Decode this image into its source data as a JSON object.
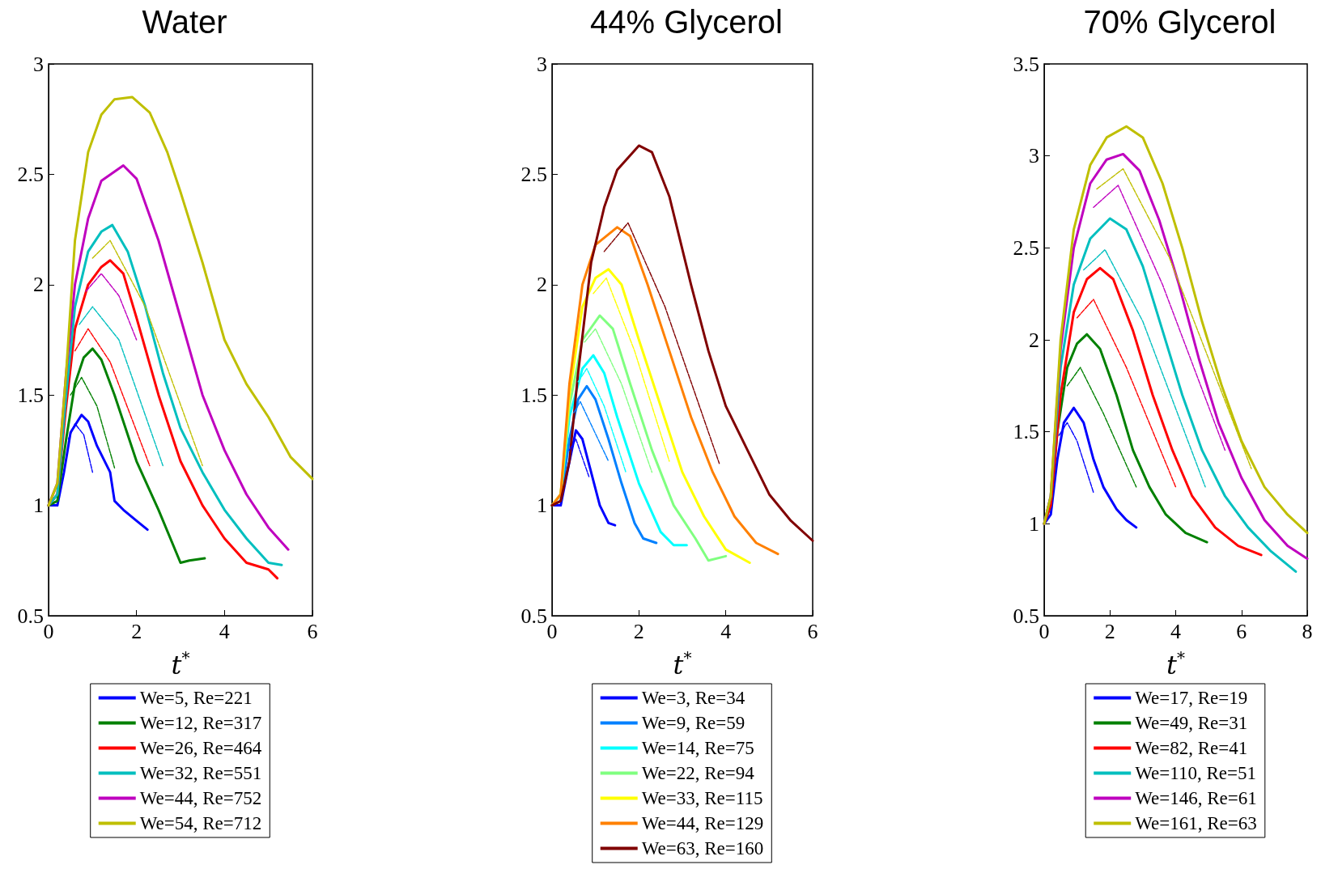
{
  "chart_data": [
    {
      "type": "line",
      "title": "Water",
      "xlabel": "t$^{*}$",
      "xlim": [
        0,
        6
      ],
      "xticks": [
        0,
        2,
        4,
        6
      ],
      "ylim": [
        0.5,
        3
      ],
      "yticks": [
        0.5,
        1,
        1.5,
        2,
        2.5,
        3
      ],
      "grid": false,
      "legend": "bottom",
      "marker": "none",
      "series": [
        {
          "name": "We=5, Re=221",
          "color": "#0000ff",
          "x": [
            0,
            0.2,
            0.35,
            0.5,
            0.75,
            0.9,
            1.1,
            1.4,
            1.5,
            1.7,
            2.0,
            2.25
          ],
          "values": [
            1,
            1.0,
            1.15,
            1.33,
            1.41,
            1.38,
            1.27,
            1.15,
            1.02,
            0.98,
            0.93,
            0.89
          ]
        },
        {
          "name": "We=12, Re=317",
          "color": "#008000",
          "x": [
            0,
            0.2,
            0.4,
            0.6,
            0.8,
            1.0,
            1.2,
            1.5,
            2.0,
            2.5,
            3.0,
            3.2,
            3.55
          ],
          "values": [
            1,
            1.02,
            1.3,
            1.55,
            1.67,
            1.71,
            1.66,
            1.5,
            1.2,
            0.98,
            0.74,
            0.75,
            0.76
          ]
        },
        {
          "name": "We=26, Re=464",
          "color": "#ff0000",
          "x": [
            0,
            0.2,
            0.4,
            0.6,
            0.9,
            1.2,
            1.4,
            1.7,
            2.0,
            2.5,
            3.0,
            3.5,
            4.0,
            4.5,
            5.0,
            5.2
          ],
          "values": [
            1,
            1.05,
            1.45,
            1.8,
            2.0,
            2.08,
            2.11,
            2.05,
            1.85,
            1.5,
            1.2,
            1.0,
            0.85,
            0.74,
            0.71,
            0.67
          ]
        },
        {
          "name": "We=32, Re=551",
          "color": "#00bfbf",
          "x": [
            0,
            0.2,
            0.4,
            0.6,
            0.9,
            1.2,
            1.45,
            1.8,
            2.2,
            2.6,
            3.0,
            3.5,
            4.0,
            4.5,
            5.0,
            5.3
          ],
          "values": [
            1,
            1.05,
            1.5,
            1.9,
            2.15,
            2.24,
            2.27,
            2.15,
            1.9,
            1.6,
            1.35,
            1.15,
            0.98,
            0.85,
            0.74,
            0.73
          ]
        },
        {
          "name": "We=44, Re=752",
          "color": "#bf00bf",
          "x": [
            0,
            0.2,
            0.4,
            0.6,
            0.9,
            1.2,
            1.7,
            2.0,
            2.5,
            3.0,
            3.5,
            4.0,
            4.5,
            5.0,
            5.45
          ],
          "values": [
            1,
            1.1,
            1.6,
            2.0,
            2.3,
            2.47,
            2.54,
            2.48,
            2.2,
            1.85,
            1.5,
            1.25,
            1.05,
            0.9,
            0.8
          ]
        },
        {
          "name": "We=54, Re=712",
          "color": "#bfbf00",
          "x": [
            0,
            0.2,
            0.4,
            0.6,
            0.9,
            1.2,
            1.5,
            1.9,
            2.3,
            2.7,
            3.0,
            3.5,
            4.0,
            4.5,
            5.0,
            5.5,
            6.0
          ],
          "values": [
            1,
            1.1,
            1.6,
            2.2,
            2.6,
            2.77,
            2.84,
            2.85,
            2.78,
            2.6,
            2.42,
            2.1,
            1.75,
            1.55,
            1.4,
            1.22,
            1.12
          ]
        },
        {
          "color": "#0000ff",
          "line_style": "dashed",
          "x": [
            0.45,
            0.6,
            0.8,
            1.0
          ],
          "values": [
            1.3,
            1.37,
            1.32,
            1.15
          ]
        },
        {
          "color": "#008000",
          "line_style": "dashed",
          "x": [
            0.5,
            0.75,
            1.1,
            1.5
          ],
          "values": [
            1.5,
            1.58,
            1.45,
            1.17
          ]
        },
        {
          "color": "#ff0000",
          "line_style": "dashed",
          "x": [
            0.6,
            0.9,
            1.4,
            2.3
          ],
          "values": [
            1.7,
            1.8,
            1.65,
            1.18
          ]
        },
        {
          "color": "#00bfbf",
          "line_style": "dashed",
          "x": [
            0.7,
            1.0,
            1.6,
            2.6
          ],
          "values": [
            1.82,
            1.9,
            1.75,
            1.18
          ]
        },
        {
          "color": "#bf00bf",
          "line_style": "dashed",
          "x": [
            0.85,
            1.2,
            1.6,
            2.0
          ],
          "values": [
            1.97,
            2.05,
            1.95,
            1.75
          ]
        },
        {
          "color": "#bfbf00",
          "line_style": "dashed",
          "x": [
            1.0,
            1.4,
            2.2,
            3.5
          ],
          "values": [
            2.12,
            2.2,
            1.9,
            1.18
          ]
        }
      ]
    },
    {
      "type": "line",
      "title": "44% Glycerol",
      "xlabel": "t$^{*}$",
      "xlim": [
        0,
        6
      ],
      "xticks": [
        0,
        2,
        4,
        6
      ],
      "ylim": [
        0.5,
        3
      ],
      "yticks": [
        0.5,
        1,
        1.5,
        2,
        2.5,
        3
      ],
      "grid": false,
      "legend": "bottom",
      "marker": "none",
      "series": [
        {
          "name": "We=3, Re=34",
          "color": "#0000ff",
          "x": [
            0,
            0.2,
            0.35,
            0.55,
            0.7,
            0.9,
            1.1,
            1.3,
            1.45
          ],
          "values": [
            1,
            1.0,
            1.15,
            1.34,
            1.3,
            1.15,
            1.0,
            0.92,
            0.91
          ]
        },
        {
          "name": "We=9, Re=59",
          "color": "#0080ff",
          "x": [
            0,
            0.2,
            0.4,
            0.6,
            0.8,
            1.0,
            1.3,
            1.6,
            1.9,
            2.1,
            2.4
          ],
          "values": [
            1,
            1.02,
            1.3,
            1.48,
            1.54,
            1.48,
            1.3,
            1.1,
            0.92,
            0.85,
            0.83
          ]
        },
        {
          "name": "We=14, Re=75",
          "color": "#00ffff",
          "x": [
            0,
            0.2,
            0.4,
            0.7,
            0.95,
            1.2,
            1.5,
            2.0,
            2.5,
            2.8,
            3.1
          ],
          "values": [
            1,
            1.05,
            1.4,
            1.62,
            1.68,
            1.6,
            1.4,
            1.1,
            0.88,
            0.82,
            0.82
          ]
        },
        {
          "name": "We=22, Re=94",
          "color": "#80ff80",
          "x": [
            0,
            0.2,
            0.4,
            0.7,
            1.1,
            1.4,
            1.8,
            2.3,
            2.8,
            3.3,
            3.6,
            4.0
          ],
          "values": [
            1,
            1.05,
            1.45,
            1.75,
            1.86,
            1.8,
            1.55,
            1.25,
            1.0,
            0.85,
            0.75,
            0.77
          ]
        },
        {
          "name": "We=33, Re=115",
          "color": "#ffff00",
          "x": [
            0,
            0.2,
            0.4,
            0.7,
            1.0,
            1.3,
            1.6,
            2.0,
            2.5,
            3.0,
            3.5,
            4.0,
            4.55
          ],
          "values": [
            1,
            1.05,
            1.5,
            1.9,
            2.03,
            2.07,
            2.0,
            1.75,
            1.45,
            1.15,
            0.95,
            0.8,
            0.74
          ]
        },
        {
          "name": "We=44, Re=129",
          "color": "#ff8000",
          "x": [
            0,
            0.2,
            0.4,
            0.7,
            1.0,
            1.5,
            1.8,
            2.2,
            2.7,
            3.2,
            3.7,
            4.2,
            4.7,
            5.2
          ],
          "values": [
            1,
            1.05,
            1.55,
            2.0,
            2.18,
            2.26,
            2.22,
            2.0,
            1.7,
            1.4,
            1.15,
            0.95,
            0.83,
            0.78
          ]
        },
        {
          "name": "We=63, Re=160",
          "color": "#800000",
          "x": [
            0,
            0.2,
            0.4,
            0.6,
            0.9,
            1.2,
            1.5,
            2.0,
            2.3,
            2.7,
            3.2,
            3.6,
            4.0,
            4.5,
            5.0,
            5.5,
            6.0
          ],
          "values": [
            1,
            1.02,
            1.2,
            1.6,
            2.1,
            2.35,
            2.52,
            2.63,
            2.6,
            2.4,
            2.0,
            1.7,
            1.45,
            1.25,
            1.05,
            0.93,
            0.84
          ]
        },
        {
          "color": "#0000ff",
          "line_style": "dashed",
          "x": [
            0.4,
            0.55,
            0.85
          ],
          "values": [
            1.25,
            1.3,
            1.13
          ]
        },
        {
          "color": "#0080ff",
          "line_style": "dashed",
          "x": [
            0.5,
            0.65,
            1.3
          ],
          "values": [
            1.42,
            1.47,
            1.2
          ]
        },
        {
          "color": "#00ffff",
          "line_style": "dashed",
          "x": [
            0.6,
            0.8,
            1.2,
            1.7
          ],
          "values": [
            1.56,
            1.62,
            1.45,
            1.15
          ]
        },
        {
          "color": "#80ff80",
          "line_style": "dashed",
          "x": [
            0.75,
            1.0,
            1.6,
            2.3
          ],
          "values": [
            1.74,
            1.8,
            1.55,
            1.15
          ]
        },
        {
          "color": "#ffff00",
          "line_style": "dashed",
          "x": [
            0.95,
            1.25,
            1.9,
            2.7
          ],
          "values": [
            1.96,
            2.03,
            1.7,
            1.2
          ]
        },
        {
          "color": "#800000",
          "line_style": "dashed",
          "x": [
            1.2,
            1.75,
            2.6,
            3.85
          ],
          "values": [
            2.15,
            2.28,
            1.9,
            1.19
          ]
        }
      ]
    },
    {
      "type": "line",
      "title": "70% Glycerol",
      "xlabel": "t$^{*}$",
      "xlim": [
        0,
        8
      ],
      "xticks": [
        0,
        2,
        4,
        6,
        8
      ],
      "ylim": [
        0.5,
        3.5
      ],
      "yticks": [
        0.5,
        1,
        1.5,
        2,
        2.5,
        3,
        3.5
      ],
      "grid": false,
      "legend": "bottom",
      "marker": "none",
      "series": [
        {
          "name": "We=17, Re=19",
          "color": "#0000ff",
          "x": [
            0,
            0.2,
            0.4,
            0.6,
            0.9,
            1.2,
            1.5,
            1.8,
            2.2,
            2.5,
            2.8
          ],
          "values": [
            1,
            1.05,
            1.35,
            1.55,
            1.63,
            1.55,
            1.35,
            1.2,
            1.08,
            1.02,
            0.98
          ]
        },
        {
          "name": "We=49, Re=31",
          "color": "#008000",
          "x": [
            0,
            0.2,
            0.4,
            0.7,
            1.0,
            1.3,
            1.7,
            2.2,
            2.7,
            3.2,
            3.7,
            4.3,
            4.95
          ],
          "values": [
            1,
            1.1,
            1.5,
            1.85,
            1.98,
            2.03,
            1.95,
            1.7,
            1.4,
            1.2,
            1.05,
            0.95,
            0.9
          ]
        },
        {
          "name": "We=82, Re=41",
          "color": "#ff0000",
          "x": [
            0,
            0.2,
            0.5,
            0.9,
            1.3,
            1.7,
            2.1,
            2.7,
            3.3,
            3.9,
            4.5,
            5.2,
            5.9,
            6.6
          ],
          "values": [
            1,
            1.1,
            1.7,
            2.15,
            2.33,
            2.39,
            2.33,
            2.05,
            1.7,
            1.4,
            1.15,
            0.98,
            0.88,
            0.83
          ]
        },
        {
          "name": "We=110, Re=51",
          "color": "#00bfbf",
          "x": [
            0,
            0.2,
            0.5,
            0.9,
            1.4,
            2.0,
            2.5,
            3.0,
            3.6,
            4.2,
            4.8,
            5.5,
            6.2,
            6.9,
            7.65
          ],
          "values": [
            1,
            1.15,
            1.85,
            2.3,
            2.55,
            2.66,
            2.6,
            2.4,
            2.05,
            1.7,
            1.4,
            1.15,
            0.98,
            0.85,
            0.74
          ]
        },
        {
          "name": "We=146, Re=61",
          "color": "#bf00bf",
          "x": [
            0,
            0.2,
            0.5,
            0.9,
            1.4,
            1.9,
            2.4,
            2.9,
            3.5,
            4.1,
            4.7,
            5.3,
            6.0,
            6.7,
            7.4,
            8.0
          ],
          "values": [
            1,
            1.15,
            1.95,
            2.5,
            2.85,
            2.98,
            3.01,
            2.92,
            2.65,
            2.3,
            1.9,
            1.55,
            1.25,
            1.02,
            0.88,
            0.81
          ]
        },
        {
          "name": "We=161, Re=63",
          "color": "#bfbf00",
          "x": [
            0,
            0.2,
            0.5,
            0.9,
            1.4,
            1.9,
            2.5,
            3.0,
            3.6,
            4.2,
            4.8,
            5.4,
            6.0,
            6.7,
            7.4,
            8.0
          ],
          "values": [
            1,
            1.15,
            2.0,
            2.6,
            2.95,
            3.1,
            3.16,
            3.1,
            2.85,
            2.5,
            2.1,
            1.75,
            1.45,
            1.2,
            1.05,
            0.95
          ]
        },
        {
          "color": "#0000ff",
          "line_style": "dashed",
          "x": [
            0.45,
            0.7,
            1.0,
            1.5
          ],
          "values": [
            1.48,
            1.55,
            1.45,
            1.17
          ]
        },
        {
          "color": "#008000",
          "line_style": "dashed",
          "x": [
            0.7,
            1.1,
            1.8,
            2.8
          ],
          "values": [
            1.75,
            1.85,
            1.6,
            1.2
          ]
        },
        {
          "color": "#ff0000",
          "line_style": "dashed",
          "x": [
            1.0,
            1.5,
            2.5,
            4.0
          ],
          "values": [
            2.12,
            2.22,
            1.85,
            1.2
          ]
        },
        {
          "color": "#00bfbf",
          "line_style": "dashed",
          "x": [
            1.2,
            1.85,
            3.0,
            4.9
          ],
          "values": [
            2.38,
            2.49,
            2.1,
            1.2
          ]
        },
        {
          "color": "#bf00bf",
          "line_style": "dashed",
          "x": [
            1.5,
            2.25,
            3.6,
            5.5
          ],
          "values": [
            2.72,
            2.84,
            2.3,
            1.4
          ]
        },
        {
          "color": "#bfbf00",
          "line_style": "dashed",
          "x": [
            1.6,
            2.4,
            3.8,
            6.3
          ],
          "values": [
            2.82,
            2.93,
            2.45,
            1.3
          ]
        }
      ]
    }
  ]
}
